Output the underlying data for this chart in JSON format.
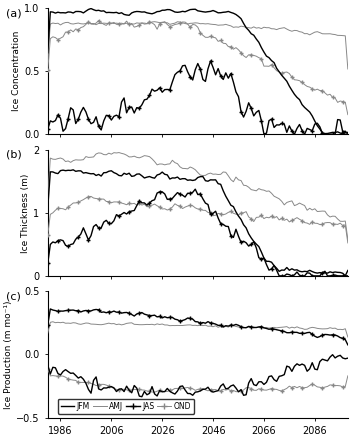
{
  "panel_a_label": "(a)",
  "panel_b_label": "(b)",
  "panel_c_label": "(c)",
  "ylabel_a": "Ice Concentration",
  "ylabel_b": "Ice Thickness (m)",
  "ylabel_c": "Ice Production (m mo⁻¹)",
  "ylim_a": [
    0.0,
    1.0
  ],
  "ylim_b": [
    0.0,
    2.0
  ],
  "ylim_c": [
    -0.5,
    0.5
  ],
  "yticks_a": [
    0.0,
    0.5,
    1.0
  ],
  "yticks_b": [
    0.0,
    1.0,
    2.0
  ],
  "yticks_c": [
    -0.5,
    0.0,
    0.5
  ],
  "xticks": [
    1986,
    2006,
    2026,
    2046,
    2066,
    2086
  ],
  "xlim": [
    1981,
    2099
  ],
  "color_black": "#000000",
  "color_grey": "#888888",
  "lw_black": 1.0,
  "lw_grey": 0.7
}
